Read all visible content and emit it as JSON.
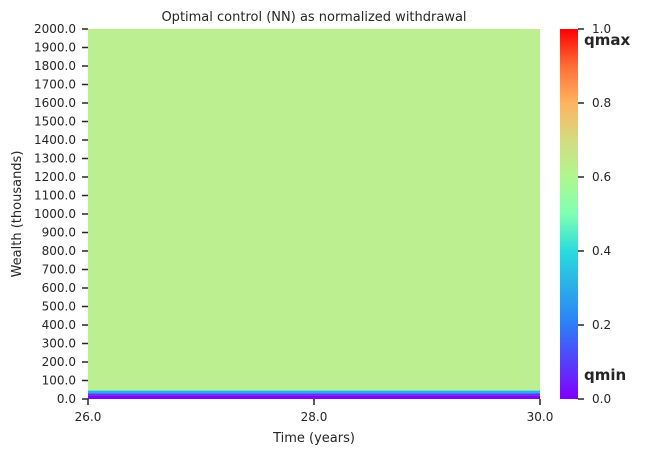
{
  "chart_data": {
    "type": "heatmap",
    "title": "Optimal control (NN) as normalized withdrawal",
    "xlabel": "Time (years)",
    "ylabel": "Wealth (thousands)",
    "xlim": [
      26.0,
      30.0
    ],
    "ylim": [
      0.0,
      2000.0
    ],
    "x_ticks": [
      "26.0",
      "28.0",
      "30.0"
    ],
    "y_ticks": [
      "0.0",
      "100.0",
      "200.0",
      "300.0",
      "400.0",
      "500.0",
      "600.0",
      "700.0",
      "800.0",
      "900.0",
      "1000.0",
      "1100.0",
      "1200.0",
      "1300.0",
      "1400.0",
      "1500.0",
      "1600.0",
      "1700.0",
      "1800.0",
      "1900.0",
      "2000.0"
    ],
    "colormap": "rainbow",
    "colorbar": {
      "ticks": [
        "0.0",
        "0.2",
        "0.4",
        "0.6",
        "0.8",
        "1.0"
      ],
      "range": [
        0.0,
        1.0
      ],
      "top_annotation": "qmax",
      "bottom_annotation": "qmin"
    },
    "bands": [
      {
        "y0": 0,
        "y1": 20,
        "value": 0.0
      },
      {
        "y0": 20,
        "y1": 30,
        "value": 0.08
      },
      {
        "y0": 30,
        "y1": 45,
        "value": 0.3
      },
      {
        "y0": 45,
        "y1": 50,
        "value": 0.45
      },
      {
        "y0": 50,
        "y1": 2000,
        "value": 0.6
      }
    ],
    "surface_color": "#bcef90"
  }
}
